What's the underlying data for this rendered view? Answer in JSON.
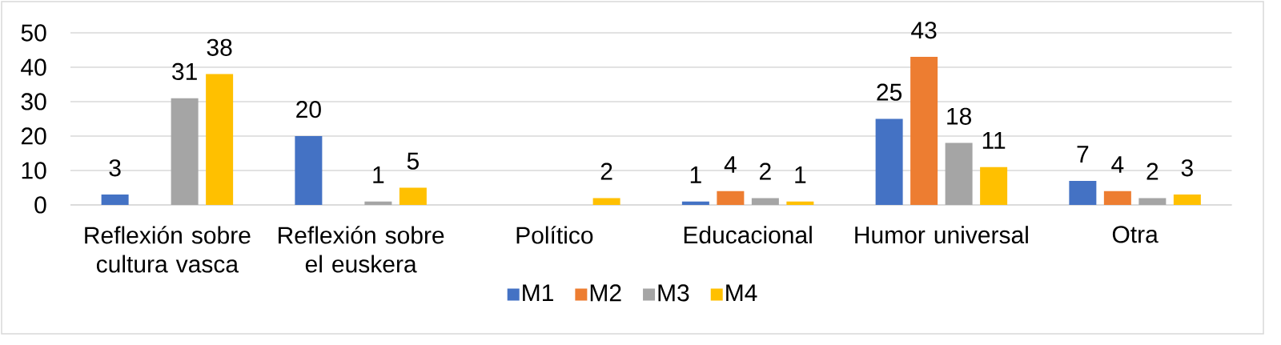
{
  "chart_data": {
    "type": "bar",
    "categories": [
      "Reflexión sobre cultura vasca",
      "Reflexión sobre el euskera",
      "Político",
      "Educacional",
      "Humor universal",
      "Otra"
    ],
    "series": [
      {
        "name": "M1",
        "color": "#4472c4",
        "values": [
          3,
          20,
          null,
          1,
          25,
          7
        ]
      },
      {
        "name": "M2",
        "color": "#ed7d31",
        "values": [
          null,
          null,
          null,
          4,
          43,
          4
        ]
      },
      {
        "name": "M3",
        "color": "#a5a5a5",
        "values": [
          31,
          1,
          null,
          2,
          18,
          2
        ]
      },
      {
        "name": "M4",
        "color": "#ffc000",
        "values": [
          38,
          5,
          2,
          1,
          11,
          3
        ]
      }
    ],
    "ylim": [
      0,
      50
    ],
    "yticks": [
      0,
      10,
      20,
      30,
      40,
      50
    ],
    "grid": "y",
    "legend": "bottom",
    "data_labels": true
  }
}
